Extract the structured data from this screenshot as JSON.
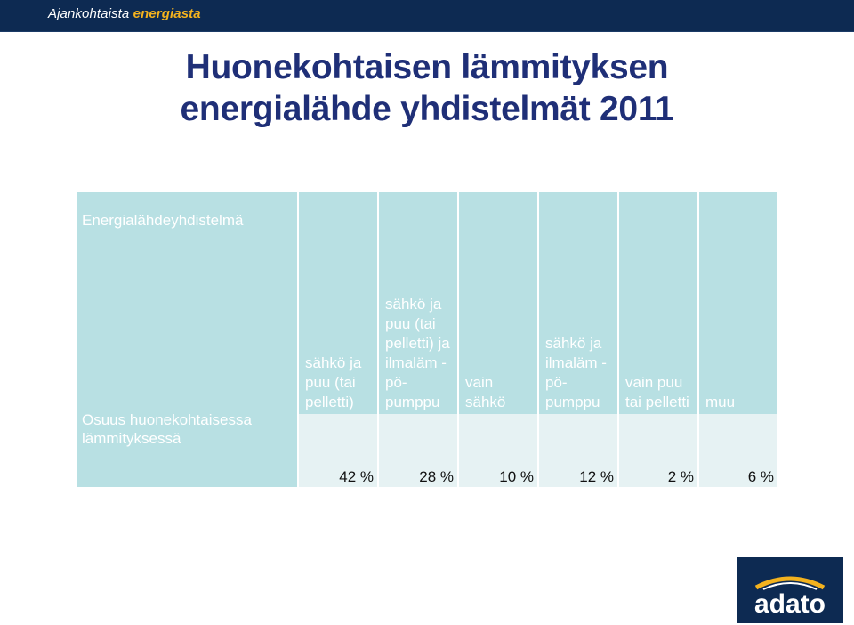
{
  "header": {
    "brand_prefix": "Ajankohtaista",
    "brand_accent": "energiasta",
    "bar_color": "#0d2a52",
    "accent_color": "#f3b21e"
  },
  "title": {
    "line1": "Huonekohtaisen lämmityksen",
    "line2": "energialähde yhdistelmät 2011"
  },
  "table": {
    "header_label": "Energialähdeyhdistelmä",
    "row_label": "Osuus huonekohtaisessa lämmityksessä",
    "columns": [
      {
        "label": "sähkö ja puu (tai pelletti)",
        "value": "42 %"
      },
      {
        "label": "sähkö ja puu (tai pelletti) ja ilmaläm -pö-pumppu",
        "value": "28 %"
      },
      {
        "label": "vain sähkö",
        "value": "10 %"
      },
      {
        "label": "sähkö ja ilmaläm -pö-pumppu",
        "value": "12 %"
      },
      {
        "label": "vain puu tai pelletti",
        "value": "2 %"
      },
      {
        "label": "muu",
        "value": "6 %"
      }
    ],
    "header_bg": "#b8e0e3",
    "value_bg": "#e6f2f3"
  },
  "logo": {
    "text": "adato",
    "icon": "adato-logo"
  }
}
